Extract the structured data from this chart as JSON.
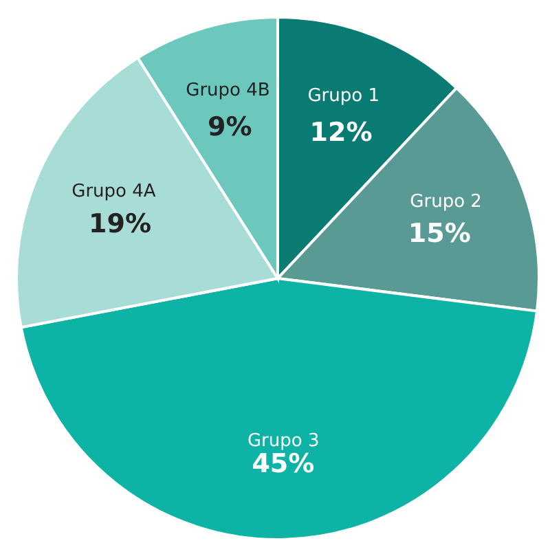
{
  "chart_data": {
    "type": "pie",
    "categories": [
      "Grupo 1",
      "Grupo 2",
      "Grupo 3",
      "Grupo 4A",
      "Grupo 4B"
    ],
    "values": [
      12,
      15,
      45,
      19,
      9
    ],
    "colors": [
      "#0a7b73",
      "#5a9a94",
      "#0db3a5",
      "#a8dcd6",
      "#6cc8bd"
    ],
    "value_labels": [
      "12%",
      "15%",
      "45%",
      "19%",
      "9%"
    ],
    "legend": false
  }
}
